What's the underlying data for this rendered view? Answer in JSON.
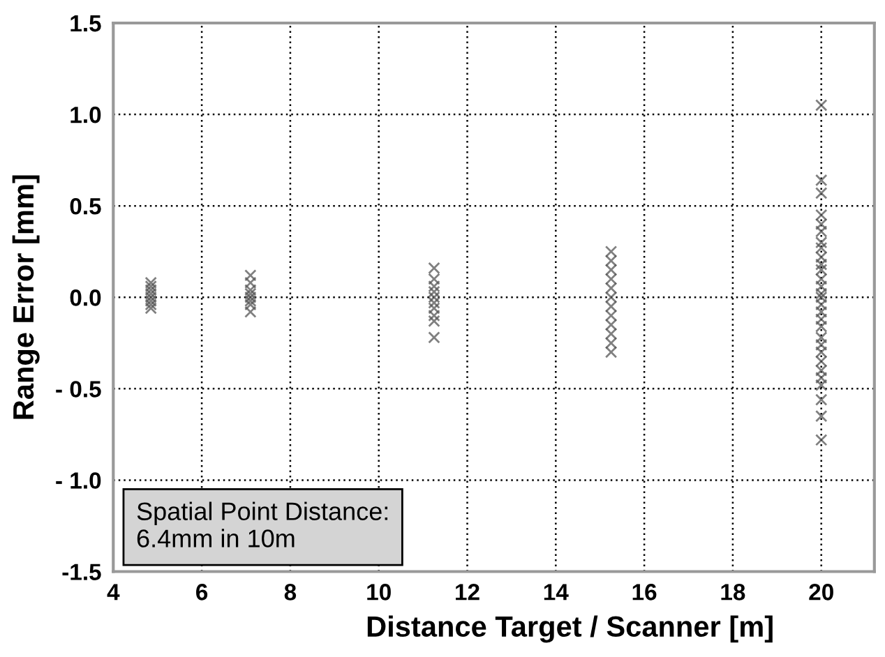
{
  "chart_data": {
    "type": "scatter",
    "xlabel": "Distance Target / Scanner [m]",
    "ylabel": "Range Error [mm]",
    "xlim": [
      4,
      21.2
    ],
    "xticks": [
      4,
      6,
      8,
      10,
      12,
      14,
      16,
      18,
      20
    ],
    "ylim": [
      -1.5,
      1.5
    ],
    "yticks": [
      {
        "value": 1.5,
        "label": "1.5"
      },
      {
        "value": 1.0,
        "label": "1.0"
      },
      {
        "value": 0.5,
        "label": "0.5"
      },
      {
        "value": 0.0,
        "label": "0.0"
      },
      {
        "value": -0.5,
        "label": "- 0.5"
      },
      {
        "value": -1.0,
        "label": "- 1.0"
      },
      {
        "value": -1.5,
        "label": "-1.5"
      }
    ],
    "grid": true,
    "marker": "cross",
    "annotations": [
      "Spatial Point Distance:\n6.4mm in 10m"
    ],
    "series": [
      {
        "color": "#555555",
        "x": [
          4.85,
          4.85,
          4.85,
          4.85,
          4.85,
          4.85,
          4.85,
          4.85,
          7.1,
          7.1,
          7.1,
          7.1,
          7.1,
          7.1,
          7.1,
          7.1,
          11.25,
          11.25,
          11.25,
          11.25,
          11.25,
          11.25,
          11.25,
          11.25,
          11.25,
          11.25,
          15.25,
          15.25,
          15.25,
          15.25,
          15.25,
          15.25,
          15.25,
          15.25,
          15.25,
          15.25,
          15.25,
          15.25,
          20,
          20,
          20,
          20,
          20,
          20,
          20,
          20,
          20,
          20,
          20,
          20,
          20,
          20,
          20,
          20,
          20,
          20,
          20,
          20,
          20,
          20,
          20,
          20,
          20,
          20,
          20,
          20,
          20
        ],
        "values": [
          0.08,
          0.06,
          0.04,
          0.02,
          0.0,
          -0.02,
          -0.04,
          -0.06,
          0.12,
          0.08,
          0.04,
          0.02,
          0.0,
          -0.02,
          -0.04,
          -0.08,
          0.16,
          0.1,
          0.06,
          0.03,
          0.0,
          -0.03,
          -0.06,
          -0.1,
          -0.13,
          -0.22,
          0.25,
          0.2,
          0.15,
          0.1,
          0.05,
          0.0,
          -0.05,
          -0.1,
          -0.15,
          -0.2,
          -0.25,
          -0.3,
          1.05,
          0.64,
          0.57,
          0.45,
          0.4,
          0.36,
          0.3,
          0.27,
          0.22,
          0.18,
          0.15,
          0.1,
          0.06,
          0.02,
          0.0,
          -0.04,
          -0.08,
          -0.12,
          -0.16,
          -0.22,
          -0.26,
          -0.3,
          -0.35,
          -0.4,
          -0.44,
          -0.48,
          -0.56,
          -0.65,
          -0.78
        ]
      }
    ]
  }
}
